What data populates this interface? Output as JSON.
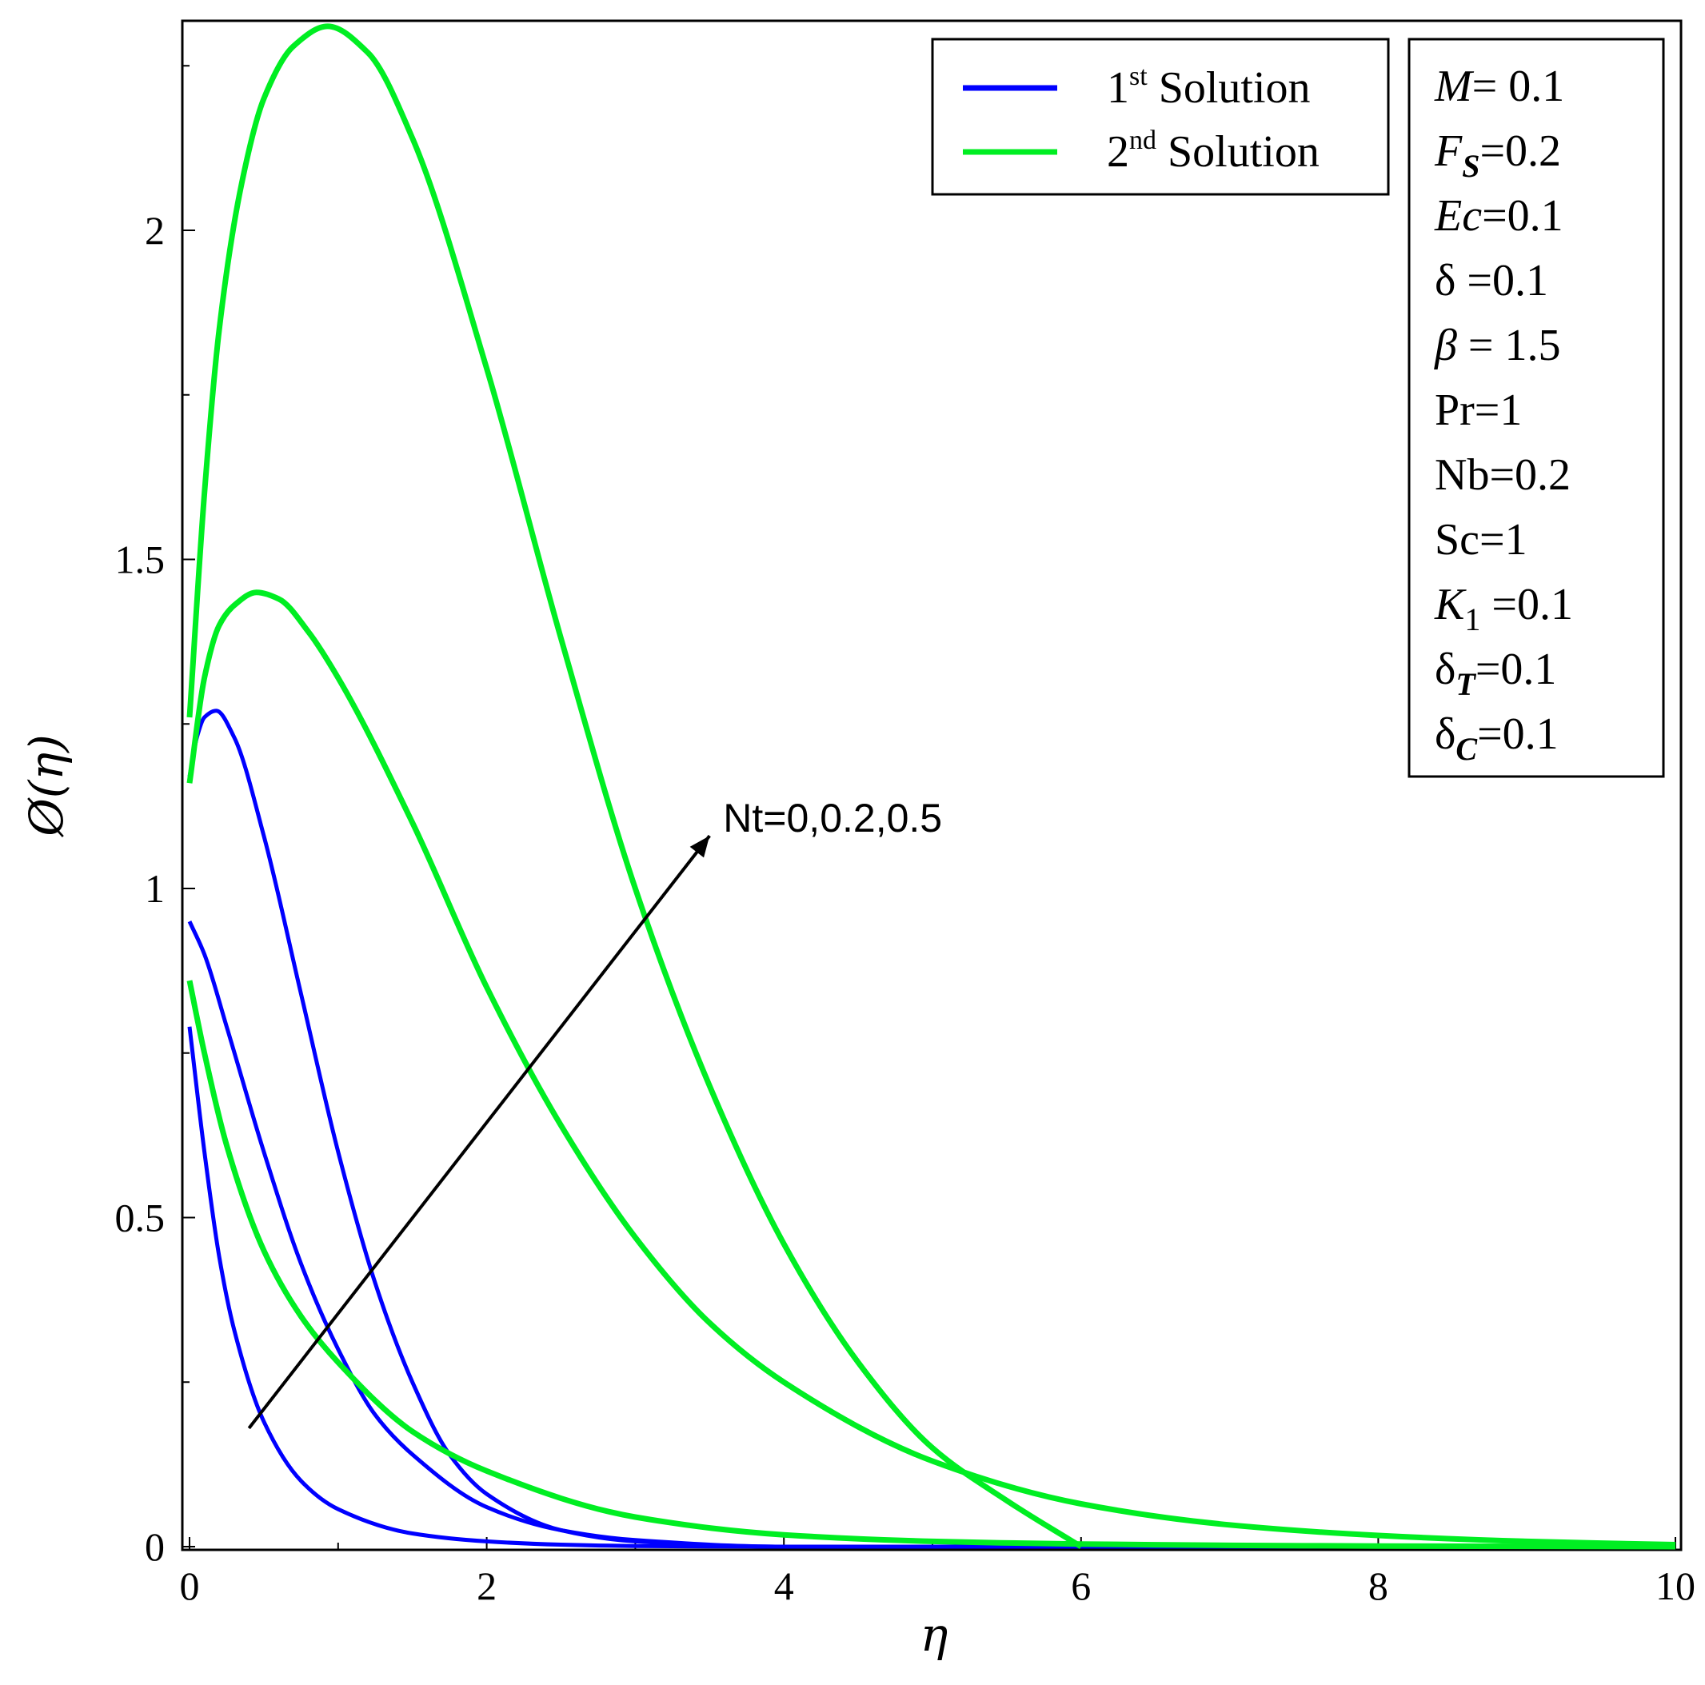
{
  "chart_data": {
    "type": "line",
    "title": "",
    "xlabel": "η",
    "ylabel": "Ø(η)",
    "xlim": [
      0,
      10
    ],
    "ylim": [
      0,
      2.32
    ],
    "x_ticks": [
      "0",
      "2",
      "4",
      "6",
      "8",
      "10"
    ],
    "y_ticks": [
      "0",
      "0.5",
      "1",
      "1.5",
      "2"
    ],
    "grid": false,
    "legend": {
      "placement": "top-right",
      "entries": [
        {
          "ordinal": "1",
          "sup": "st",
          "label": "Solution",
          "color": "#0000ff"
        },
        {
          "ordinal": "2",
          "sup": "nd",
          "label": "Solution",
          "color": "#00ee22"
        }
      ]
    },
    "parameters": [
      {
        "sym": "M",
        "sub": "",
        "value": "= 0.1"
      },
      {
        "sym": "F",
        "sub": "S",
        "value": "=0.2"
      },
      {
        "sym": "Ec",
        "sub": "",
        "value": "=0.1"
      },
      {
        "sym": "δ",
        "sub": "",
        "value": " =0.1"
      },
      {
        "sym": "β",
        "sub": "",
        "value": " = 1.5"
      },
      {
        "sym": "Pr",
        "sub": "",
        "value": "=1"
      },
      {
        "sym": "Nb",
        "sub": "",
        "value": "=0.2"
      },
      {
        "sym": "Sc",
        "sub": "",
        "value": "=1"
      },
      {
        "sym": "K",
        "sub": "1",
        "value": " =0.1"
      },
      {
        "sym": "δ",
        "sub": "T",
        "value": "=0.1"
      },
      {
        "sym": "δ",
        "sub": "C",
        "value": "=0.1"
      }
    ],
    "annotation": {
      "text": "Nt=0,0.2,0.5",
      "arrow_from": [
        0.4,
        0.18
      ],
      "arrow_to": [
        3.5,
        1.08
      ]
    },
    "series": [
      {
        "group": "1st Solution",
        "color": "#0000ff",
        "x": [
          0,
          0.1,
          0.2,
          0.3,
          0.5,
          0.75,
          1.0,
          1.5,
          2.0,
          2.5,
          3.0,
          4.0,
          10
        ],
        "y": [
          0.79,
          0.6,
          0.44,
          0.33,
          0.19,
          0.1,
          0.057,
          0.02,
          0.008,
          0.003,
          0.001,
          0,
          0
        ]
      },
      {
        "group": "1st Solution",
        "color": "#0000ff",
        "x": [
          0,
          0.1,
          0.25,
          0.5,
          0.75,
          1.0,
          1.25,
          1.5,
          2.0,
          2.5,
          3.0,
          4.0,
          10
        ],
        "y": [
          0.95,
          0.9,
          0.79,
          0.6,
          0.43,
          0.3,
          0.2,
          0.14,
          0.06,
          0.025,
          0.01,
          0,
          0
        ]
      },
      {
        "group": "1st Solution",
        "color": "#0000ff",
        "x": [
          0,
          0.05,
          0.1,
          0.18,
          0.3,
          0.5,
          0.75,
          1.0,
          1.25,
          1.5,
          1.75,
          2.0,
          2.5,
          3.0,
          4.0,
          10
        ],
        "y": [
          1.17,
          1.23,
          1.26,
          1.27,
          1.23,
          1.08,
          0.84,
          0.6,
          0.4,
          0.25,
          0.14,
          0.08,
          0.025,
          0.008,
          0,
          0
        ]
      },
      {
        "group": "2nd Solution",
        "color": "#00ee22",
        "x": [
          0,
          0.1,
          0.25,
          0.5,
          0.75,
          1.0,
          1.5,
          2.0,
          3.0,
          4.0,
          5.0,
          6.0,
          7.0,
          8.0,
          10
        ],
        "y": [
          0.86,
          0.75,
          0.61,
          0.45,
          0.35,
          0.28,
          0.175,
          0.115,
          0.045,
          0.018,
          0.008,
          0.004,
          0.002,
          0.001,
          0
        ]
      },
      {
        "group": "2nd Solution",
        "color": "#00ee22",
        "x": [
          0,
          0.1,
          0.2,
          0.3,
          0.45,
          0.6,
          0.8,
          1.0,
          1.5,
          2.0,
          2.5,
          3.0,
          3.5,
          4.0,
          5.0,
          6.0,
          7.0,
          8.0,
          9.0,
          10
        ],
        "y": [
          1.16,
          1.32,
          1.4,
          1.43,
          1.45,
          1.44,
          1.39,
          1.32,
          1.1,
          0.85,
          0.64,
          0.47,
          0.34,
          0.25,
          0.13,
          0.065,
          0.033,
          0.017,
          0.008,
          0.003
        ]
      },
      {
        "group": "2nd Solution",
        "color": "#00ee22",
        "x": [
          0,
          0.1,
          0.2,
          0.35,
          0.5,
          0.7,
          0.93,
          1.2,
          1.5,
          2.0,
          2.5,
          3.0,
          3.5,
          4.0,
          4.5,
          5.0,
          5.5,
          6.0
        ],
        "y": [
          1.26,
          1.6,
          1.85,
          2.07,
          2.2,
          2.28,
          2.31,
          2.27,
          2.14,
          1.79,
          1.38,
          1.0,
          0.7,
          0.46,
          0.28,
          0.15,
          0.07,
          0.0
        ]
      }
    ]
  }
}
